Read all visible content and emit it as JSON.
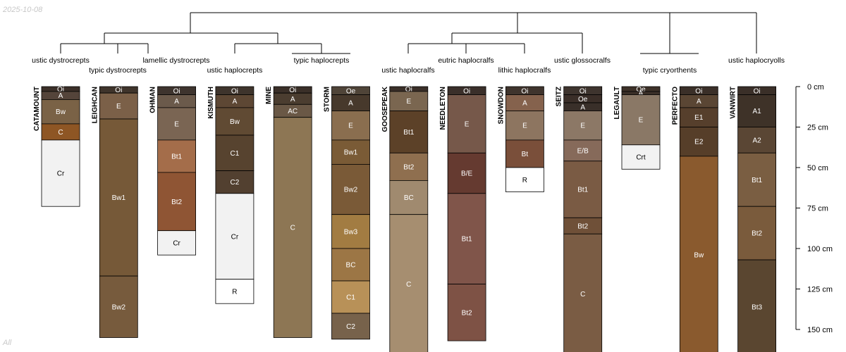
{
  "date_stamp": "2025-10-08",
  "corner_note": "All",
  "chart_data": {
    "type": "soil-profile-sketch",
    "depth_unit": "cm",
    "depth_axis_ticks": [
      0,
      25,
      50,
      75,
      100,
      125,
      150
    ],
    "depth_axis_tick_labels": [
      "0 cm",
      "25 cm",
      "50 cm",
      "75 cm",
      "100 cm",
      "125 cm",
      "150 cm"
    ],
    "taxa": [
      "ustic dystrocrepts",
      "typic dystrocrepts",
      "lamellic dystrocrepts",
      "ustic haplocrepts",
      "typic haplocrepts",
      "ustic haplocralfs",
      "eutric haplocralfs",
      "lithic haplocralfs",
      "ustic glossocralfs",
      "typic cryorthents",
      "ustic haplocryolls"
    ],
    "profiles": [
      {
        "name": "CATAMOUNT",
        "horizons": [
          {
            "name": "Oi",
            "top": 0,
            "bottom": 3,
            "color": "#3b2f28"
          },
          {
            "name": "A",
            "top": 3,
            "bottom": 8,
            "color": "#54443a"
          },
          {
            "name": "Bw",
            "top": 8,
            "bottom": 23,
            "color": "#7a6246"
          },
          {
            "name": "C",
            "top": 23,
            "bottom": 33,
            "color": "#8e5624"
          },
          {
            "name": "Cr",
            "top": 33,
            "bottom": 74,
            "color": "#f2f2f2"
          }
        ]
      },
      {
        "name": "LEIGHCAN",
        "horizons": [
          {
            "name": "Oi",
            "top": 0,
            "bottom": 4,
            "color": "#3f342b"
          },
          {
            "name": "E",
            "top": 4,
            "bottom": 20,
            "color": "#7b6048"
          },
          {
            "name": "Bw1",
            "top": 20,
            "bottom": 117,
            "color": "#765938"
          },
          {
            "name": "Bw2",
            "top": 117,
            "bottom": 155,
            "color": "#775b3d"
          }
        ]
      },
      {
        "name": "OHMAN",
        "horizons": [
          {
            "name": "Oi",
            "top": 0,
            "bottom": 5,
            "color": "#3e342e"
          },
          {
            "name": "A",
            "top": 5,
            "bottom": 13,
            "color": "#6b5a4b"
          },
          {
            "name": "E",
            "top": 13,
            "bottom": 33,
            "color": "#7a6553"
          },
          {
            "name": "Bt1",
            "top": 33,
            "bottom": 53,
            "color": "#a46d4a"
          },
          {
            "name": "Bt2",
            "top": 53,
            "bottom": 89,
            "color": "#8f5534"
          },
          {
            "name": "Cr",
            "top": 89,
            "bottom": 104,
            "color": "#f2f2f2"
          }
        ]
      },
      {
        "name": "KISMUTH",
        "horizons": [
          {
            "name": "Oi",
            "top": 0,
            "bottom": 5,
            "color": "#3e342c"
          },
          {
            "name": "A",
            "top": 5,
            "bottom": 13,
            "color": "#5d4734"
          },
          {
            "name": "Bw",
            "top": 13,
            "bottom": 30,
            "color": "#604a33"
          },
          {
            "name": "C1",
            "top": 30,
            "bottom": 52,
            "color": "#57432f"
          },
          {
            "name": "C2",
            "top": 52,
            "bottom": 66,
            "color": "#524030"
          },
          {
            "name": "Cr",
            "top": 66,
            "bottom": 119,
            "color": "#f2f2f2"
          },
          {
            "name": "R",
            "top": 119,
            "bottom": 134,
            "color": "#ffffff"
          }
        ]
      },
      {
        "name": "MINE",
        "horizons": [
          {
            "name": "Oi",
            "top": 0,
            "bottom": 4,
            "color": "#3a2f28"
          },
          {
            "name": "A",
            "top": 4,
            "bottom": 11,
            "color": "#4b3d30"
          },
          {
            "name": "AC",
            "top": 11,
            "bottom": 19,
            "color": "#6a5846"
          },
          {
            "name": "C",
            "top": 19,
            "bottom": 155,
            "color": "#8d7654"
          }
        ]
      },
      {
        "name": "STORM",
        "horizons": [
          {
            "name": "Oe",
            "top": 0,
            "bottom": 5,
            "color": "#4f4438"
          },
          {
            "name": "A",
            "top": 5,
            "bottom": 15,
            "color": "#47392c"
          },
          {
            "name": "E",
            "top": 15,
            "bottom": 33,
            "color": "#8a6e4f"
          },
          {
            "name": "Bw1",
            "top": 33,
            "bottom": 48,
            "color": "#7a5b36"
          },
          {
            "name": "Bw2",
            "top": 48,
            "bottom": 79,
            "color": "#7a5a37"
          },
          {
            "name": "Bw3",
            "top": 79,
            "bottom": 100,
            "color": "#a27c42"
          },
          {
            "name": "BC",
            "top": 100,
            "bottom": 120,
            "color": "#9c7645"
          },
          {
            "name": "C1",
            "top": 120,
            "bottom": 140,
            "color": "#b89158"
          },
          {
            "name": "C2",
            "top": 140,
            "bottom": 156,
            "color": "#77624b"
          }
        ]
      },
      {
        "name": "GOOSEPEAK",
        "horizons": [
          {
            "name": "Oi",
            "top": 0,
            "bottom": 3,
            "color": "#3a2f28"
          },
          {
            "name": "E",
            "top": 3,
            "bottom": 15,
            "color": "#7a6650"
          },
          {
            "name": "Bt1",
            "top": 15,
            "bottom": 41,
            "color": "#5c4128"
          },
          {
            "name": "Bt2",
            "top": 41,
            "bottom": 58,
            "color": "#8f6f4f"
          },
          {
            "name": "BC",
            "top": 58,
            "bottom": 79,
            "color": "#a08a6f"
          },
          {
            "name": "C",
            "top": 79,
            "bottom": 165,
            "color": "#a68e70"
          }
        ]
      },
      {
        "name": "NEEDLETON",
        "horizons": [
          {
            "name": "Oi",
            "top": 0,
            "bottom": 5,
            "color": "#3a2f2a"
          },
          {
            "name": "E",
            "top": 5,
            "bottom": 41,
            "color": "#76584a"
          },
          {
            "name": "B/E",
            "top": 41,
            "bottom": 66,
            "color": "#653a30"
          },
          {
            "name": "Bt1",
            "top": 66,
            "bottom": 122,
            "color": "#80554a"
          },
          {
            "name": "Bt2",
            "top": 122,
            "bottom": 157,
            "color": "#7e5245"
          }
        ]
      },
      {
        "name": "SNOWDON",
        "horizons": [
          {
            "name": "Oi",
            "top": 0,
            "bottom": 5,
            "color": "#3f342d"
          },
          {
            "name": "A",
            "top": 5,
            "bottom": 15,
            "color": "#85624d"
          },
          {
            "name": "E",
            "top": 15,
            "bottom": 33,
            "color": "#8d7560"
          },
          {
            "name": "Bt",
            "top": 33,
            "bottom": 50,
            "color": "#7a4f3a"
          },
          {
            "name": "R",
            "top": 50,
            "bottom": 65,
            "color": "#ffffff"
          }
        ]
      },
      {
        "name": "SEITZ",
        "horizons": [
          {
            "name": "Oi",
            "top": 0,
            "bottom": 5,
            "color": "#3e342e"
          },
          {
            "name": "Oe",
            "top": 5,
            "bottom": 10,
            "color": "#3a2e28"
          },
          {
            "name": "A",
            "top": 10,
            "bottom": 15,
            "color": "#392f29"
          },
          {
            "name": "E",
            "top": 15,
            "bottom": 33,
            "color": "#8c7866"
          },
          {
            "name": "E/B",
            "top": 33,
            "bottom": 46,
            "color": "#866a5a"
          },
          {
            "name": "Bt1",
            "top": 46,
            "bottom": 81,
            "color": "#7a5b44"
          },
          {
            "name": "Bt2",
            "top": 81,
            "bottom": 91,
            "color": "#6f5038"
          },
          {
            "name": "C",
            "top": 91,
            "bottom": 165,
            "color": "#7a5c44"
          }
        ]
      },
      {
        "name": "LEGAULT",
        "horizons": [
          {
            "name": "Oe",
            "top": 0,
            "bottom": 3,
            "color": "#3d3128"
          },
          {
            "name": "A",
            "top": 3,
            "bottom": 5,
            "color": "#3a2f28"
          },
          {
            "name": "E",
            "top": 5,
            "bottom": 36,
            "color": "#8a7866"
          },
          {
            "name": "Crt",
            "top": 36,
            "bottom": 51,
            "color": "#f2f2f2"
          }
        ]
      },
      {
        "name": "PERFECTO",
        "horizons": [
          {
            "name": "Oi",
            "top": 0,
            "bottom": 5,
            "color": "#3a2f28"
          },
          {
            "name": "A",
            "top": 5,
            "bottom": 13,
            "color": "#5a4634"
          },
          {
            "name": "E1",
            "top": 13,
            "bottom": 25,
            "color": "#563f2c"
          },
          {
            "name": "E2",
            "top": 25,
            "bottom": 43,
            "color": "#563e29"
          },
          {
            "name": "Bw",
            "top": 43,
            "bottom": 165,
            "color": "#8a5a2e"
          }
        ]
      },
      {
        "name": "VANWIRT",
        "horizons": [
          {
            "name": "Oi",
            "top": 0,
            "bottom": 5,
            "color": "#3a2f28"
          },
          {
            "name": "A1",
            "top": 5,
            "bottom": 25,
            "color": "#3e3228"
          },
          {
            "name": "A2",
            "top": 25,
            "bottom": 41,
            "color": "#5a4634"
          },
          {
            "name": "Bt1",
            "top": 41,
            "bottom": 74,
            "color": "#7a5e42"
          },
          {
            "name": "Bt2",
            "top": 74,
            "bottom": 107,
            "color": "#7a5b3c"
          },
          {
            "name": "Bt3",
            "top": 107,
            "bottom": 165,
            "color": "#5a4630"
          }
        ]
      }
    ]
  }
}
